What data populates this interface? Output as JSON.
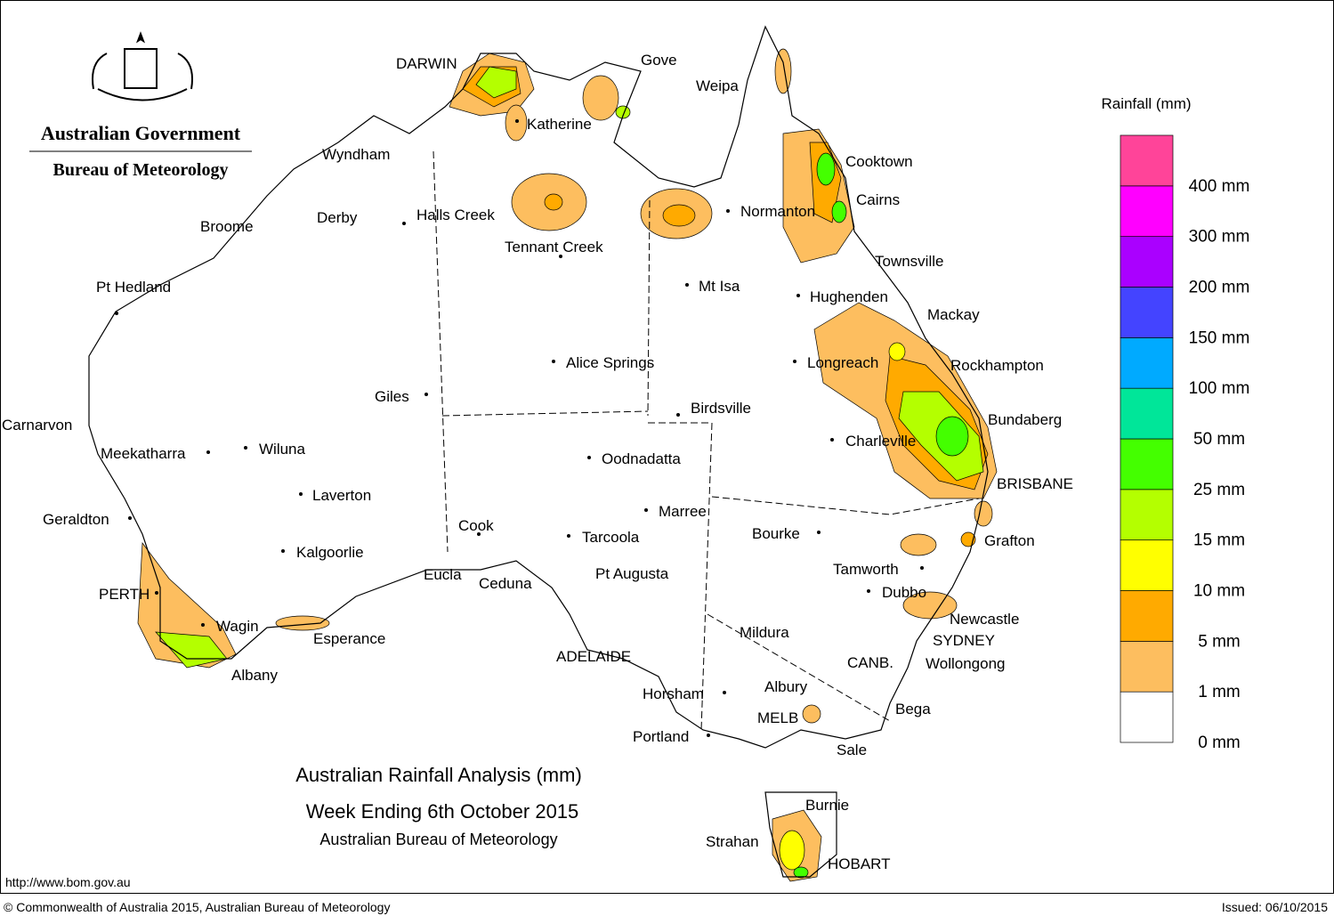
{
  "header": {
    "agency": "Australian Government",
    "bureau": "Bureau of Meteorology"
  },
  "title": {
    "line1": "Australian Rainfall Analysis (mm)",
    "line2": "Week Ending 6th October 2015",
    "line3": "Australian Bureau of Meteorology"
  },
  "url": "http://www.bom.gov.au",
  "footer": {
    "copyright": "© Commonwealth of Australia 2015, Australian Bureau of Meteorology",
    "issued": "Issued: 06/10/2015"
  },
  "legend": {
    "title": "Rainfall (mm)",
    "levels": [
      {
        "label": "0 mm",
        "color": "#ffffff"
      },
      {
        "label": "1 mm",
        "color": "#fdbe5f"
      },
      {
        "label": "5 mm",
        "color": "#ffaa00"
      },
      {
        "label": "10 mm",
        "color": "#ffff00"
      },
      {
        "label": "15 mm",
        "color": "#b4ff00"
      },
      {
        "label": "25 mm",
        "color": "#44ff00"
      },
      {
        "label": "50 mm",
        "color": "#00e699"
      },
      {
        "label": "100 mm",
        "color": "#00aaff"
      },
      {
        "label": "150 mm",
        "color": "#4444ff"
      },
      {
        "label": "200 mm",
        "color": "#aa00ff"
      },
      {
        "label": "300 mm",
        "color": "#ff00ff"
      },
      {
        "label": "400 mm",
        "color": "#ff4499"
      }
    ]
  },
  "places": [
    "DARWIN",
    "Gove",
    "Weipa",
    "Katherine",
    "Wyndham",
    "Cooktown",
    "Cairns",
    "Normanton",
    "Broome",
    "Derby",
    "Halls Creek",
    "Tennant Creek",
    "Townsville",
    "Pt Hedland",
    "Mt Isa",
    "Hughenden",
    "Mackay",
    "Alice Springs",
    "Longreach",
    "Rockhampton",
    "Giles",
    "Birdsville",
    "Bundaberg",
    "Carnarvon",
    "Charleville",
    "Wiluna",
    "Meekatharra",
    "Oodnadatta",
    "BRISBANE",
    "Laverton",
    "Marree",
    "Geraldton",
    "Cook",
    "Bourke",
    "Tarcoola",
    "Grafton",
    "Kalgoorlie",
    "Tamworth",
    "Eucla",
    "Pt Augusta",
    "Ceduna",
    "PERTH",
    "Dubbo",
    "Newcastle",
    "Wagin",
    "Mildura",
    "SYDNEY",
    "Esperance",
    "CANB.",
    "Wollongong",
    "ADELAIDE",
    "Albany",
    "Albury",
    "Horsham",
    "Bega",
    "MELB",
    "Portland",
    "Sale",
    "Burnie",
    "Strahan",
    "HOBART"
  ]
}
